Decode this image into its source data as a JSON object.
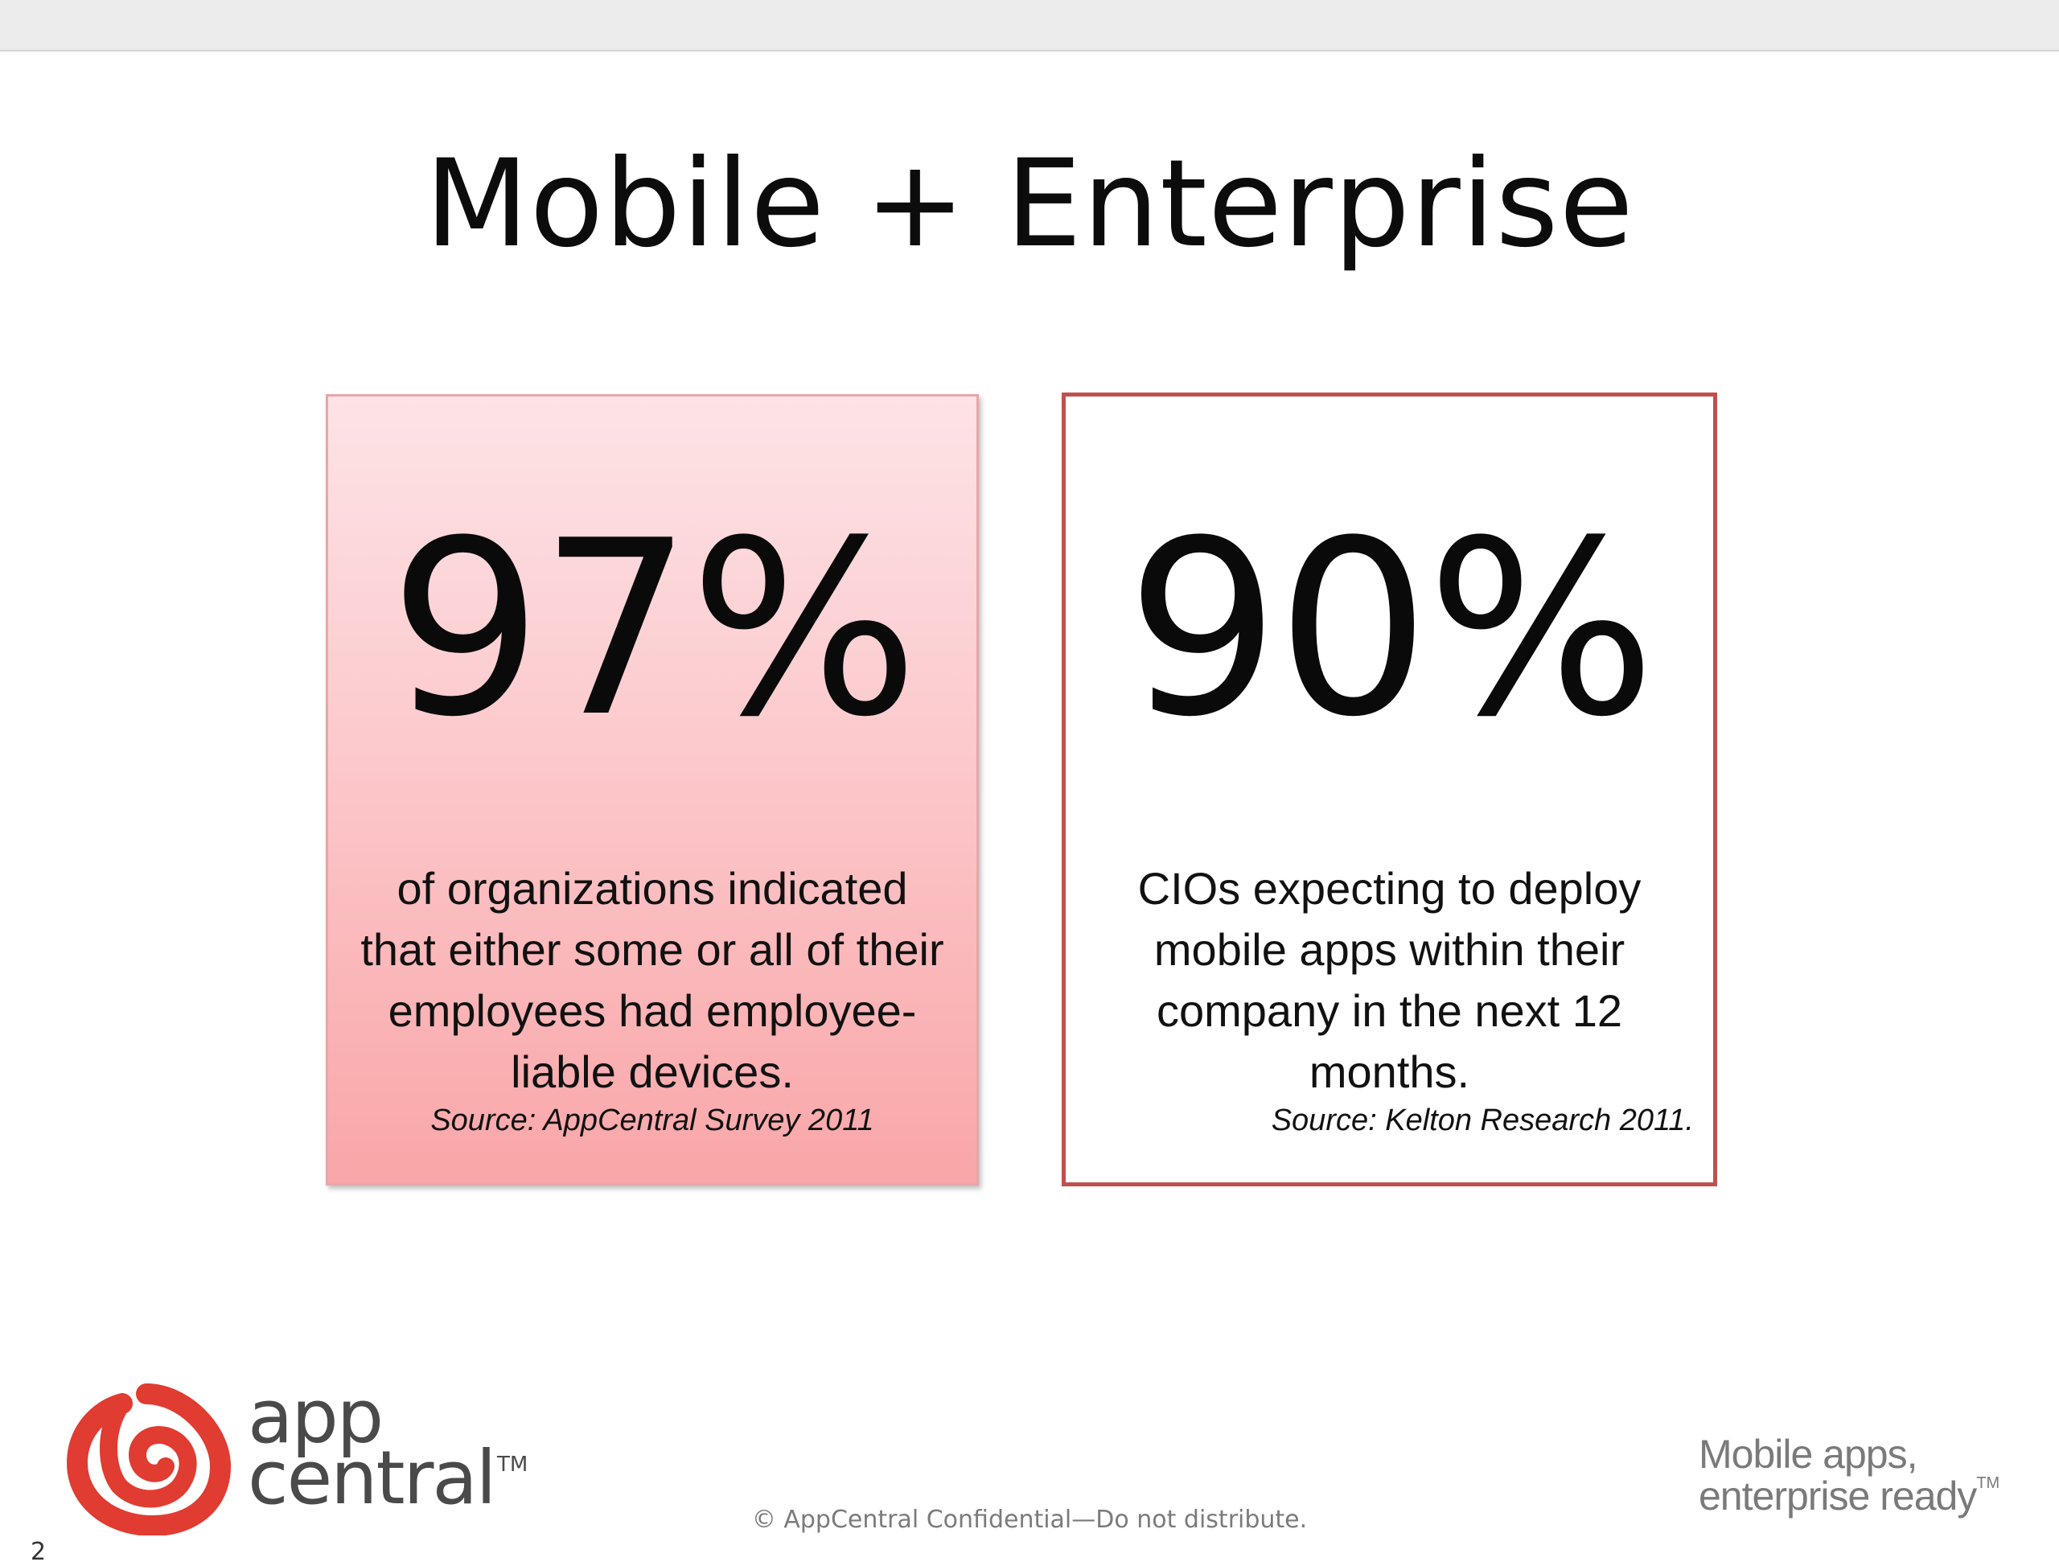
{
  "slide": {
    "title": "Mobile + Enterprise",
    "page_number": "2"
  },
  "stats": [
    {
      "value": "97%",
      "description": "of organizations indicated that either some or all of their employees had employee-liable devices.",
      "source": "Source: AppCentral Survey 2011"
    },
    {
      "value": "90%",
      "description": "CIOs expecting to deploy mobile apps within their company in the next 12 months.",
      "source": "Source: Kelton Research 2011."
    }
  ],
  "branding": {
    "logo_line1": "app",
    "logo_line2": "central",
    "logo_trademark": "TM",
    "tagline_line1": "Mobile apps,",
    "tagline_line2": "enterprise ready",
    "tagline_trademark": "TM",
    "logo_icon": "appcentral-spiral-icon",
    "logo_color": "#e03c31"
  },
  "footer": {
    "confidential": "© AppCentral Confidential—Do not distribute."
  },
  "colors": {
    "card_left_top": "#fde3e6",
    "card_left_bottom": "#f9a6a8",
    "card_right_border": "#c0504d"
  }
}
